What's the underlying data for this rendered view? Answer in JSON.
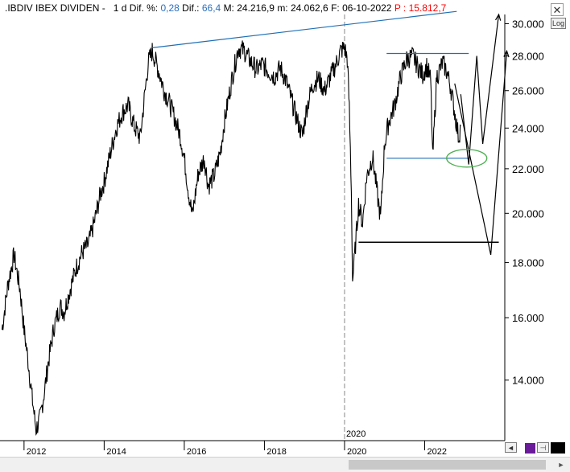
{
  "header": {
    "symbol": ".IBDIV",
    "name": "IBEX DIVIDEN",
    "period": "1 d",
    "dif_pct_label": "Dif. %:",
    "dif_pct_value": "0,28",
    "dif_label": "Dif.:",
    "dif_value": "66,4",
    "max_label": "M:",
    "max_value": "24.216,9",
    "min_label": "m:",
    "min_value": "24.062,6",
    "date_label": "F:",
    "date_value": "06-10-2022",
    "price_label": "P :",
    "price_value": "15.812,7"
  },
  "colors": {
    "price_red": "#ff0000",
    "value_blue": "#2a6fbf",
    "trendline": "#1f6fb5",
    "ellipse": "#4caf50"
  },
  "log_button": "Log",
  "scale_note": "log",
  "vline_label": "2020",
  "chart_data": {
    "type": "line",
    "title": "",
    "y_scale": "log",
    "y_ticks": [
      "30.000",
      "28.000",
      "26.000",
      "24.000",
      "22.000",
      "20.000",
      "18.000",
      "16.000",
      "14.000"
    ],
    "x_ticks": [
      "2012",
      "2014",
      "2016",
      "2018",
      "2020",
      "2022"
    ],
    "ylim": [
      12300,
      30600
    ],
    "xlim": [
      2011.4,
      2024.0
    ],
    "series": [
      {
        "values": [
          [
            2011.45,
            15600
          ],
          [
            2011.6,
            17200
          ],
          [
            2011.75,
            18300
          ],
          [
            2011.9,
            17000
          ],
          [
            2012.0,
            15600
          ],
          [
            2012.1,
            14600
          ],
          [
            2012.2,
            13500
          ],
          [
            2012.3,
            12600
          ],
          [
            2012.4,
            12900
          ],
          [
            2012.5,
            13600
          ],
          [
            2012.6,
            14500
          ],
          [
            2012.75,
            15700
          ],
          [
            2012.9,
            16400
          ],
          [
            2013.0,
            16200
          ],
          [
            2013.15,
            17000
          ],
          [
            2013.3,
            17800
          ],
          [
            2013.45,
            18400
          ],
          [
            2013.6,
            18700
          ],
          [
            2013.75,
            19600
          ],
          [
            2013.9,
            20800
          ],
          [
            2014.0,
            21400
          ],
          [
            2014.15,
            22700
          ],
          [
            2014.3,
            24000
          ],
          [
            2014.45,
            24800
          ],
          [
            2014.6,
            25200
          ],
          [
            2014.75,
            24100
          ],
          [
            2014.9,
            23500
          ],
          [
            2015.0,
            25500
          ],
          [
            2015.1,
            27600
          ],
          [
            2015.2,
            28300
          ],
          [
            2015.35,
            27200
          ],
          [
            2015.5,
            26000
          ],
          [
            2015.6,
            25500
          ],
          [
            2015.75,
            24600
          ],
          [
            2015.9,
            23600
          ],
          [
            2016.0,
            22500
          ],
          [
            2016.1,
            21000
          ],
          [
            2016.2,
            19900
          ],
          [
            2016.35,
            21800
          ],
          [
            2016.5,
            22500
          ],
          [
            2016.6,
            21200
          ],
          [
            2016.75,
            21700
          ],
          [
            2016.9,
            22800
          ],
          [
            2017.0,
            24300
          ],
          [
            2017.2,
            26800
          ],
          [
            2017.35,
            28500
          ],
          [
            2017.5,
            28300
          ],
          [
            2017.65,
            27700
          ],
          [
            2017.8,
            27200
          ],
          [
            2017.95,
            27500
          ],
          [
            2018.1,
            27100
          ],
          [
            2018.25,
            26800
          ],
          [
            2018.4,
            27300
          ],
          [
            2018.55,
            26500
          ],
          [
            2018.7,
            25300
          ],
          [
            2018.85,
            24200
          ],
          [
            2018.95,
            23600
          ],
          [
            2019.05,
            25000
          ],
          [
            2019.2,
            26300
          ],
          [
            2019.35,
            26700
          ],
          [
            2019.5,
            26000
          ],
          [
            2019.65,
            26800
          ],
          [
            2019.8,
            27600
          ],
          [
            2019.9,
            28300
          ],
          [
            2020.0,
            28500
          ],
          [
            2020.07,
            27800
          ],
          [
            2020.12,
            25000
          ],
          [
            2020.17,
            21000
          ],
          [
            2020.2,
            17300
          ],
          [
            2020.25,
            18200
          ],
          [
            2020.35,
            20400
          ],
          [
            2020.45,
            19600
          ],
          [
            2020.55,
            21600
          ],
          [
            2020.7,
            22600
          ],
          [
            2020.82,
            20800
          ],
          [
            2020.9,
            19800
          ],
          [
            2021.0,
            23200
          ],
          [
            2021.1,
            24300
          ],
          [
            2021.25,
            25200
          ],
          [
            2021.4,
            26800
          ],
          [
            2021.55,
            27800
          ],
          [
            2021.7,
            28000
          ],
          [
            2021.85,
            27300
          ],
          [
            2021.95,
            26900
          ],
          [
            2022.05,
            27400
          ],
          [
            2022.15,
            26600
          ],
          [
            2022.2,
            22500
          ],
          [
            2022.3,
            26800
          ],
          [
            2022.45,
            27600
          ],
          [
            2022.55,
            27100
          ],
          [
            2022.65,
            26200
          ],
          [
            2022.75,
            24800
          ],
          [
            2022.85,
            23500
          ],
          [
            2022.9,
            24100
          ]
        ]
      }
    ],
    "annotations": {
      "upper_trendline": [
        [
          2015.2,
          28500
        ],
        [
          2022.8,
          30800
        ]
      ],
      "resistance": [
        [
          2021.05,
          28150
        ],
        [
          2023.1,
          28150
        ]
      ],
      "support": [
        [
          2021.05,
          22500
        ],
        [
          2023.1,
          22500
        ]
      ],
      "lower_support": [
        [
          2020.35,
          18800
        ],
        [
          2023.85,
          18800
        ]
      ],
      "path_a": [
        [
          2022.9,
          25800
        ],
        [
          2023.1,
          22200
        ],
        [
          2023.3,
          28000
        ],
        [
          2023.45,
          23200
        ],
        [
          2023.85,
          30600
        ]
      ],
      "path_b": [
        [
          2022.75,
          26400
        ],
        [
          2023.65,
          18300
        ],
        [
          2024.05,
          28300
        ]
      ],
      "ellipse_center": [
        2023.05,
        22500
      ]
    }
  }
}
